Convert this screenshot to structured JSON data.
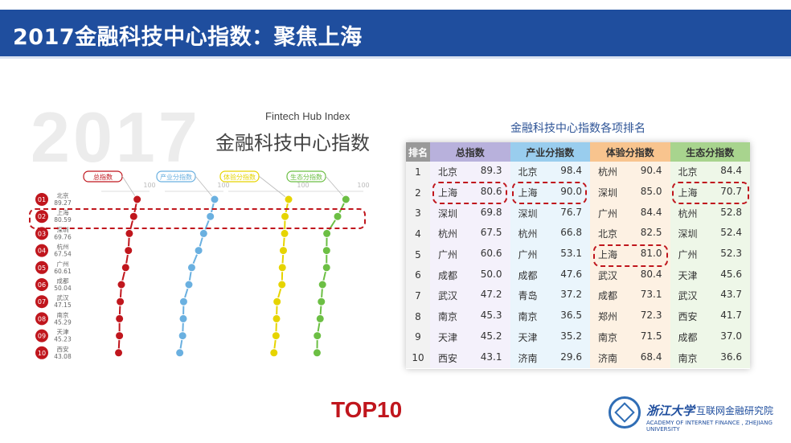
{
  "header": {
    "title": "2017金融科技中心指数：聚焦上海"
  },
  "left": {
    "year": "2017",
    "subtitle_en": "Fintech Hub Index",
    "subtitle_cn": "金融科技中心指数"
  },
  "colors": {
    "total": "#c0161d",
    "industry": "#6ab0e0",
    "experience": "#e6d400",
    "ecosystem": "#6cbf44",
    "accent": "#c0161d",
    "brand": "#1f4e9e"
  },
  "chart_data": [
    {
      "type": "line",
      "series": [
        {
          "name": "总指数",
          "color": "#c0161d",
          "values": [
            89.3,
            80.6,
            69.8,
            67.5,
            60.6,
            50.0,
            47.2,
            45.3,
            45.2,
            43.1
          ]
        },
        {
          "name": "产业分指数",
          "color": "#6ab0e0",
          "values": [
            98.4,
            90.0,
            76.7,
            66.8,
            53.1,
            47.6,
            37.2,
            36.5,
            35.2,
            29.6
          ]
        },
        {
          "name": "体验分指数",
          "color": "#e6d400",
          "values": [
            90.4,
            85.0,
            84.4,
            82.5,
            81.0,
            80.4,
            73.1,
            72.3,
            71.5,
            68.4
          ]
        },
        {
          "name": "生态分指数",
          "color": "#6cbf44",
          "values": [
            84.4,
            70.7,
            52.8,
            52.4,
            52.3,
            45.6,
            43.7,
            41.7,
            37.0,
            36.6
          ]
        }
      ],
      "ranks": [
        "01",
        "02",
        "03",
        "04",
        "05",
        "06",
        "07",
        "08",
        "09",
        "10"
      ],
      "city_labels": [
        "北京",
        "上海",
        "深圳",
        "杭州",
        "广州",
        "成都",
        "武汉",
        "南京",
        "天津",
        "西安"
      ],
      "score_labels": [
        "89.27",
        "80.59",
        "69.76",
        "67.54",
        "60.61",
        "50.04",
        "47.15",
        "45.29",
        "45.23",
        "43.08"
      ],
      "axis": {
        "max_label": "100",
        "ylim": [
          0,
          100
        ]
      }
    },
    {
      "type": "table",
      "title": "金融科技中心指数各项排名",
      "columns": [
        "排名",
        "总指数",
        "产业分指数",
        "体验分指数",
        "生态分指数"
      ],
      "rows": [
        {
          "rank": "1",
          "a": [
            "北京",
            "89.3"
          ],
          "b": [
            "北京",
            "98.4"
          ],
          "c": [
            "杭州",
            "90.4"
          ],
          "d": [
            "北京",
            "84.4"
          ]
        },
        {
          "rank": "2",
          "a": [
            "上海",
            "80.6"
          ],
          "b": [
            "上海",
            "90.0"
          ],
          "c": [
            "深圳",
            "85.0"
          ],
          "d": [
            "上海",
            "70.7"
          ]
        },
        {
          "rank": "3",
          "a": [
            "深圳",
            "69.8"
          ],
          "b": [
            "深圳",
            "76.7"
          ],
          "c": [
            "广州",
            "84.4"
          ],
          "d": [
            "杭州",
            "52.8"
          ]
        },
        {
          "rank": "4",
          "a": [
            "杭州",
            "67.5"
          ],
          "b": [
            "杭州",
            "66.8"
          ],
          "c": [
            "北京",
            "82.5"
          ],
          "d": [
            "深圳",
            "52.4"
          ]
        },
        {
          "rank": "5",
          "a": [
            "广州",
            "60.6"
          ],
          "b": [
            "广州",
            "53.1"
          ],
          "c": [
            "上海",
            "81.0"
          ],
          "d": [
            "广州",
            "52.3"
          ]
        },
        {
          "rank": "6",
          "a": [
            "成都",
            "50.0"
          ],
          "b": [
            "成都",
            "47.6"
          ],
          "c": [
            "武汉",
            "80.4"
          ],
          "d": [
            "天津",
            "45.6"
          ]
        },
        {
          "rank": "7",
          "a": [
            "武汉",
            "47.2"
          ],
          "b": [
            "青岛",
            "37.2"
          ],
          "c": [
            "成都",
            "73.1"
          ],
          "d": [
            "武汉",
            "43.7"
          ]
        },
        {
          "rank": "8",
          "a": [
            "南京",
            "45.3"
          ],
          "b": [
            "南京",
            "36.5"
          ],
          "c": [
            "郑州",
            "72.3"
          ],
          "d": [
            "西安",
            "41.7"
          ]
        },
        {
          "rank": "9",
          "a": [
            "天津",
            "45.2"
          ],
          "b": [
            "天津",
            "35.2"
          ],
          "c": [
            "南京",
            "71.5"
          ],
          "d": [
            "成都",
            "37.0"
          ]
        },
        {
          "rank": "10",
          "a": [
            "西安",
            "43.1"
          ],
          "b": [
            "济南",
            "29.6"
          ],
          "c": [
            "济南",
            "68.4"
          ],
          "d": [
            "南京",
            "36.6"
          ]
        }
      ]
    }
  ],
  "footer": {
    "badge": "TOP10",
    "university": "浙江大学",
    "institute": "互联网金融研究院",
    "institute_en": "ACADEMY OF INTERNET FINANCE , ZHEJIANG UNIVERSITY"
  }
}
